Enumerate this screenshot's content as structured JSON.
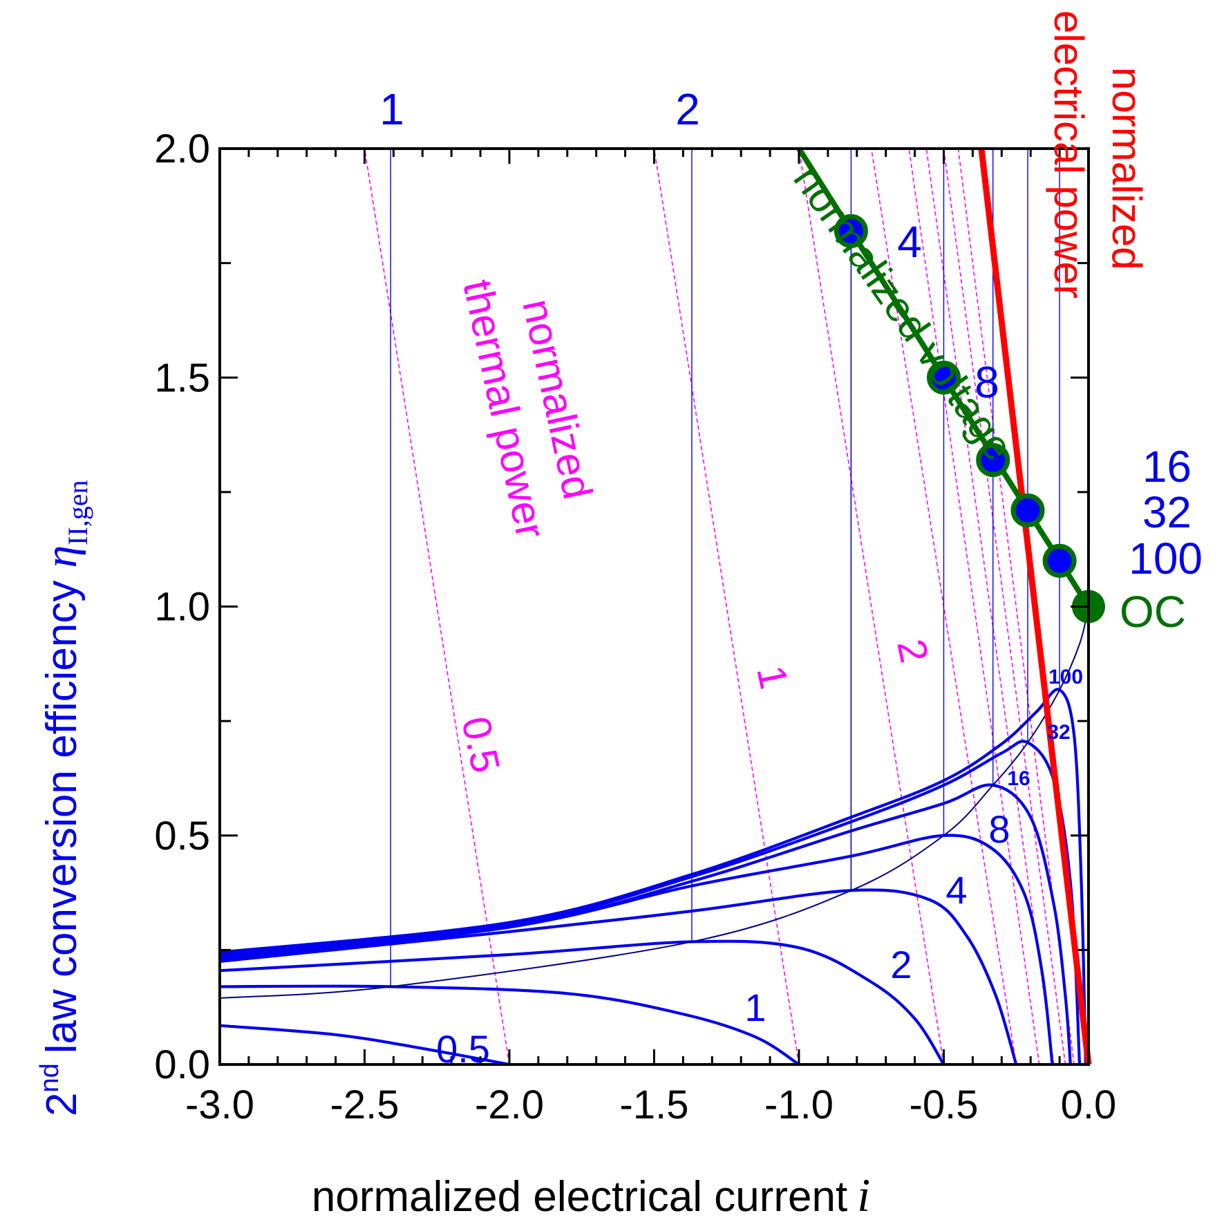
{
  "chart_data": {
    "type": "line",
    "xlabel": "normalized electrical current",
    "xlabel_symbol": "i",
    "ylabel_prefix": "2",
    "ylabel_sup": "nd",
    "ylabel": "law conversion efficiency",
    "ylabel_symbol": "η",
    "ylabel_subscript": "II,gen",
    "xlim": [
      -3.0,
      0.0
    ],
    "ylim": [
      0.0,
      2.0
    ],
    "x_ticks": [
      "-3.0",
      "-2.5",
      "-2.0",
      "-1.5",
      "-1.0",
      "-0.5",
      "0.0"
    ],
    "y_ticks": [
      "0.0",
      "0.5",
      "1.0",
      "1.5",
      "2.0"
    ],
    "colors": {
      "efficiency": "#0000ee",
      "envelope": "#000080",
      "thermal_power": "#ff00ff",
      "electrical_power": "#ff0000",
      "voltage": "#007000",
      "marker": "#0000ff"
    },
    "efficiency_curves": [
      {
        "name": "0.5",
        "i_min": -2.0,
        "i_opt": -3.0,
        "eta_max": 0.17
      },
      {
        "name": "1",
        "i_min": -1.0,
        "i_opt": -2.41,
        "eta_max": 0.17
      },
      {
        "name": "2",
        "i_min": -0.5,
        "i_opt": -1.37,
        "eta_max": 0.268
      },
      {
        "name": "4",
        "i_min": -0.25,
        "i_opt": -0.82,
        "eta_max": 0.38
      },
      {
        "name": "8",
        "i_min": -0.125,
        "i_opt": -0.5,
        "eta_max": 0.5
      },
      {
        "name": "16",
        "i_min": -0.0625,
        "i_opt": -0.33,
        "eta_max": 0.61
      },
      {
        "name": "32",
        "i_min": -0.03125,
        "i_opt": -0.21,
        "eta_max": 0.703
      },
      {
        "name": "100",
        "i_min": -0.01,
        "i_opt": -0.1,
        "eta_max": 0.818
      }
    ],
    "optimum_lines": [
      {
        "i": -2.41,
        "eta": 0.17
      },
      {
        "i": -1.37,
        "eta": 0.268
      },
      {
        "i": -0.82,
        "eta": 0.38
      },
      {
        "i": -0.5,
        "eta": 0.5
      },
      {
        "i": -0.33,
        "eta": 0.61
      },
      {
        "i": -0.21,
        "eta": 0.703
      },
      {
        "i": -0.1,
        "eta": 0.818
      }
    ],
    "voltage_markers": [
      {
        "i": -0.82,
        "eta": 1.82
      },
      {
        "i": -0.5,
        "eta": 1.5
      },
      {
        "i": -0.33,
        "eta": 1.32
      },
      {
        "i": -0.21,
        "eta": 1.21
      },
      {
        "i": -0.1,
        "eta": 1.1
      }
    ],
    "oc_point": {
      "i": 0.0,
      "eta": 1.0
    },
    "thermal_power_lines": [
      {
        "i_bottom": -2.0,
        "i_top": -2.5
      },
      {
        "i_bottom": -1.0,
        "i_top": -1.5
      },
      {
        "i_bottom": -0.5,
        "i_top": -1.0
      },
      {
        "i_bottom": -0.25,
        "i_top": -0.75
      },
      {
        "i_bottom": -0.17,
        "i_top": -0.62
      },
      {
        "i_bottom": -0.12,
        "i_top": -0.56
      },
      {
        "i_bottom": -0.08,
        "i_top": -0.5
      },
      {
        "i_bottom": -0.05,
        "i_top": -0.45
      }
    ],
    "electrical_power_line": {
      "i_bottom": 0.0,
      "i_top": -0.37
    },
    "labels": {
      "top_1": "1",
      "top_2": "2",
      "top_4": "4",
      "top_8": "8",
      "right_16": "16",
      "right_32": "32",
      "right_100": "100",
      "oc": "OC",
      "curve_05": "0.5",
      "curve_1": "1",
      "curve_2": "2",
      "curve_4": "4",
      "curve_8": "8",
      "small_16": "16",
      "small_32": "32",
      "small_100": "100",
      "tp_05": "0.5",
      "tp_1": "1",
      "tp_2": "2",
      "thermal_line1": "normalized",
      "thermal_line2": "thermal power",
      "elec_line1": "normalized",
      "elec_line2": "electrical power",
      "voltage_label": "normalized voltage"
    }
  }
}
